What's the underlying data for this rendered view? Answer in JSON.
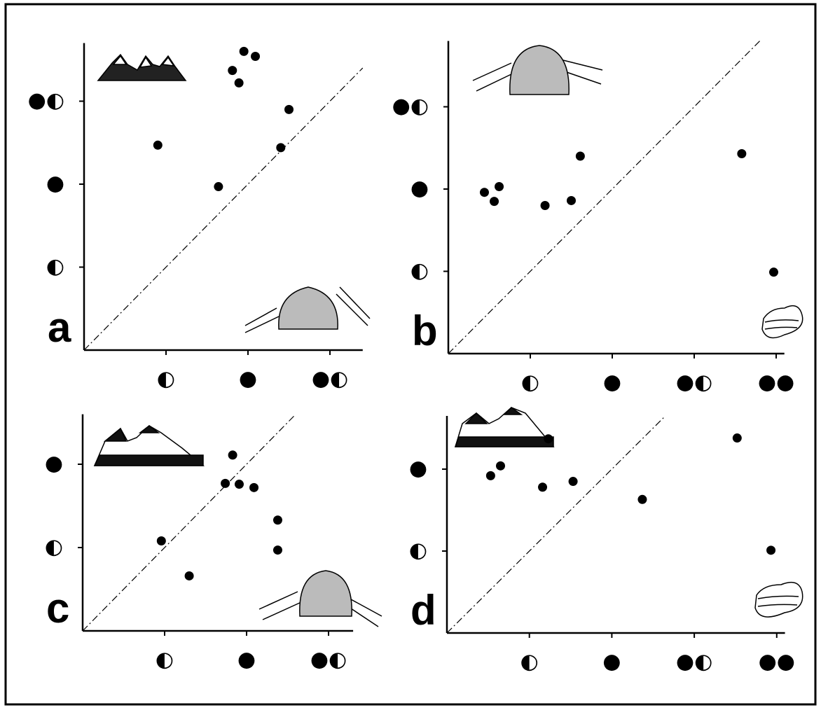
{
  "chart_data": [
    {
      "type": "scatter",
      "panel_label": "a",
      "color": "#000000",
      "x": [
        0.9,
        1.64,
        1.81,
        1.89,
        1.95,
        2.09,
        2.5,
        2.4
      ],
      "values": [
        2.47,
        1.97,
        3.37,
        3.22,
        3.6,
        3.54,
        2.9,
        2.44
      ],
      "xlim": [
        0,
        3.4
      ],
      "ylim": [
        0,
        3.7
      ],
      "xticks": [
        {
          "value": 1,
          "label": "◐"
        },
        {
          "value": 2,
          "label": "●"
        },
        {
          "value": 3,
          "label": "●◐"
        }
      ],
      "yticks": [
        {
          "value": 1,
          "label": "◐"
        },
        {
          "value": 2,
          "label": "●"
        },
        {
          "value": 3,
          "label": "●◐"
        }
      ]
    },
    {
      "type": "scatter",
      "panel_label": "b",
      "color": "#000000",
      "x": [
        0.44,
        0.62,
        0.56,
        1.18,
        1.5,
        1.61,
        3.58,
        3.97
      ],
      "values": [
        1.96,
        2.03,
        1.85,
        1.8,
        1.86,
        2.4,
        2.43,
        0.99
      ],
      "xlim": [
        0,
        4.1
      ],
      "ylim": [
        0,
        3.8
      ],
      "xticks": [
        {
          "value": 1,
          "label": "◐"
        },
        {
          "value": 2,
          "label": "●"
        },
        {
          "value": 3,
          "label": "●◐"
        },
        {
          "value": 4,
          "label": "●●"
        }
      ],
      "yticks": [
        {
          "value": 1,
          "label": "◐"
        },
        {
          "value": 2,
          "label": "●"
        },
        {
          "value": 3,
          "label": "●◐"
        }
      ]
    },
    {
      "type": "scatter",
      "panel_label": "c",
      "color": "#000000",
      "x": [
        0.96,
        1.3,
        1.74,
        1.91,
        2.09,
        1.83,
        2.38,
        2.38
      ],
      "values": [
        1.08,
        0.66,
        1.77,
        1.76,
        1.72,
        2.11,
        1.33,
        0.97
      ],
      "xlim": [
        0,
        3.3
      ],
      "ylim": [
        0,
        2.6
      ],
      "xticks": [
        {
          "value": 1,
          "label": "◐"
        },
        {
          "value": 2,
          "label": "●"
        },
        {
          "value": 3,
          "label": "●◐"
        }
      ],
      "yticks": [
        {
          "value": 1,
          "label": "◐"
        },
        {
          "value": 2,
          "label": "●"
        }
      ]
    },
    {
      "type": "scatter",
      "panel_label": "d",
      "color": "#000000",
      "x": [
        0.53,
        0.65,
        1.16,
        1.23,
        1.53,
        2.37,
        3.52,
        3.93
      ],
      "values": [
        1.92,
        2.04,
        1.78,
        2.37,
        1.85,
        1.63,
        2.38,
        1.01
      ],
      "xlim": [
        0,
        4.1
      ],
      "ylim": [
        0,
        2.65
      ],
      "xticks": [
        {
          "value": 1,
          "label": "◐"
        },
        {
          "value": 2,
          "label": "●"
        },
        {
          "value": 3,
          "label": "●◐"
        },
        {
          "value": 4,
          "label": "●●"
        }
      ],
      "yticks": [
        {
          "value": 1,
          "label": "◐"
        },
        {
          "value": 2,
          "label": "●"
        }
      ]
    }
  ]
}
